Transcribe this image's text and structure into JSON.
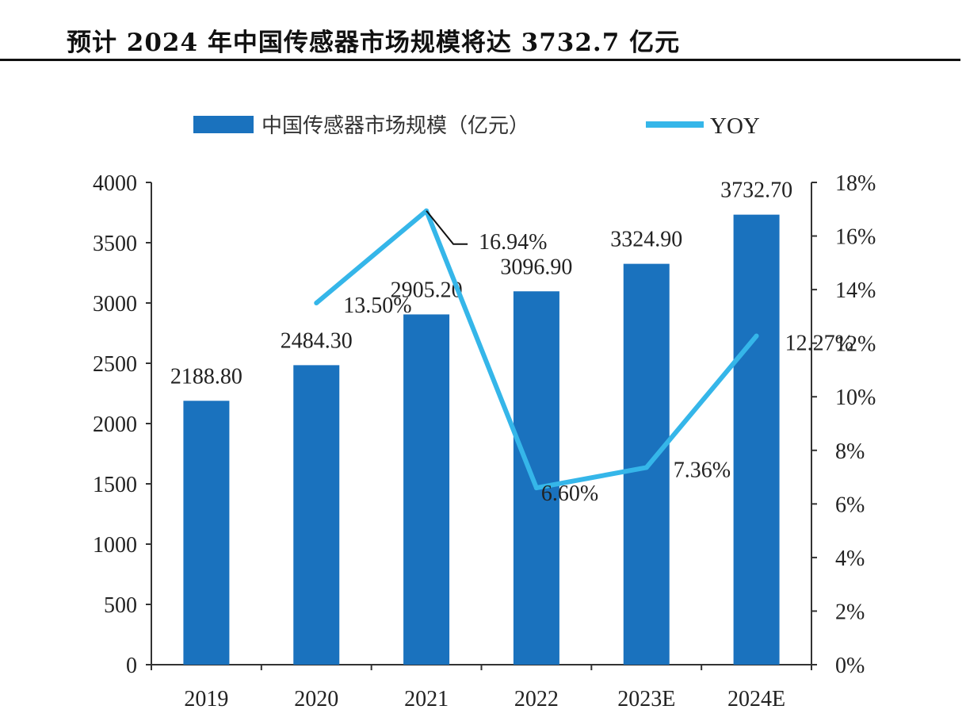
{
  "title": "预计 2024 年中国传感器市场规模将达 3732.7 亿元",
  "colors": {
    "bar": "#1A72BE",
    "line": "#35B6E9",
    "axis": "#333333"
  },
  "chart_data": {
    "type": "bar",
    "categories": [
      "2019",
      "2020",
      "2021",
      "2022",
      "2023E",
      "2024E"
    ],
    "series": [
      {
        "name": "中国传感器市场规模（亿元）",
        "type": "bar",
        "axis": "left",
        "values": [
          2188.8,
          2484.3,
          2905.2,
          3096.9,
          3324.9,
          3732.7
        ],
        "labels": [
          "2188.80",
          "2484.30",
          "2905.20",
          "3096.90",
          "3324.90",
          "3732.70"
        ]
      },
      {
        "name": "YOY",
        "type": "line",
        "axis": "right",
        "values": [
          null,
          13.5,
          16.94,
          6.6,
          7.36,
          12.27
        ],
        "labels": [
          "",
          "13.50%",
          "16.94%",
          "6.60%",
          "7.36%",
          "12.27%"
        ]
      }
    ],
    "ylim": [
      0,
      4000
    ],
    "yticks": [
      "0",
      "500",
      "1000",
      "1500",
      "2000",
      "2500",
      "3000",
      "3500",
      "4000"
    ],
    "y2lim": [
      0,
      18
    ],
    "y2ticks": [
      "0%",
      "2%",
      "4%",
      "6%",
      "8%",
      "10%",
      "12%",
      "14%",
      "16%",
      "18%"
    ],
    "legend_position": "top-center",
    "grid": false
  }
}
